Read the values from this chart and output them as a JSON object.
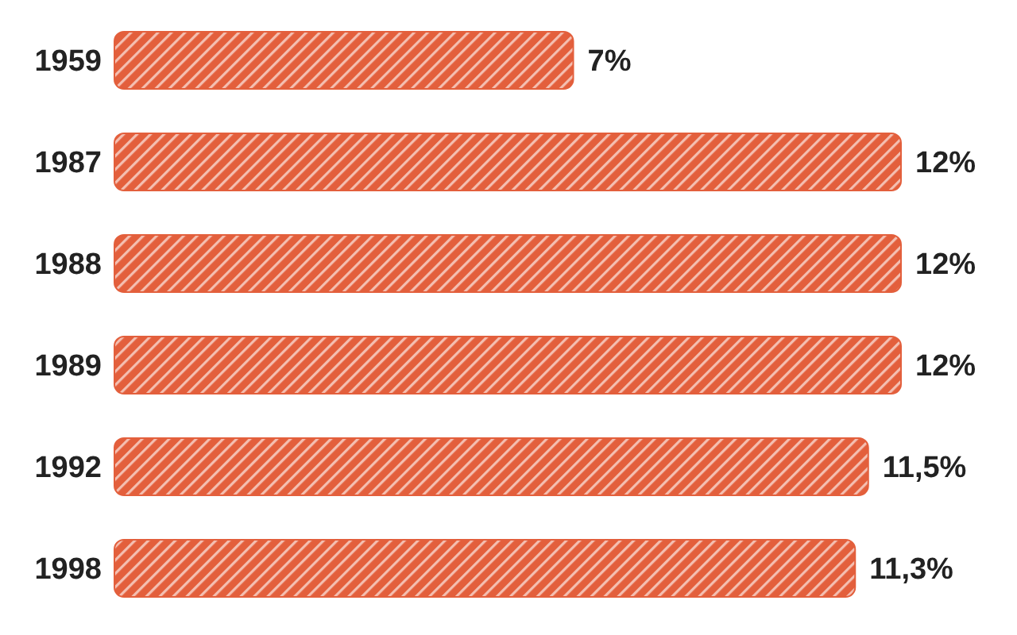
{
  "chart_data": {
    "type": "bar",
    "orientation": "horizontal",
    "categories": [
      "1959",
      "1987",
      "1988",
      "1989",
      "1992",
      "1998"
    ],
    "values": [
      7,
      12,
      12,
      12,
      11.5,
      11.3
    ],
    "color": "#e35f3c",
    "value_labels": [
      "7%",
      "12%",
      "12%",
      "12%",
      "11,5%",
      "11,3%"
    ]
  }
}
